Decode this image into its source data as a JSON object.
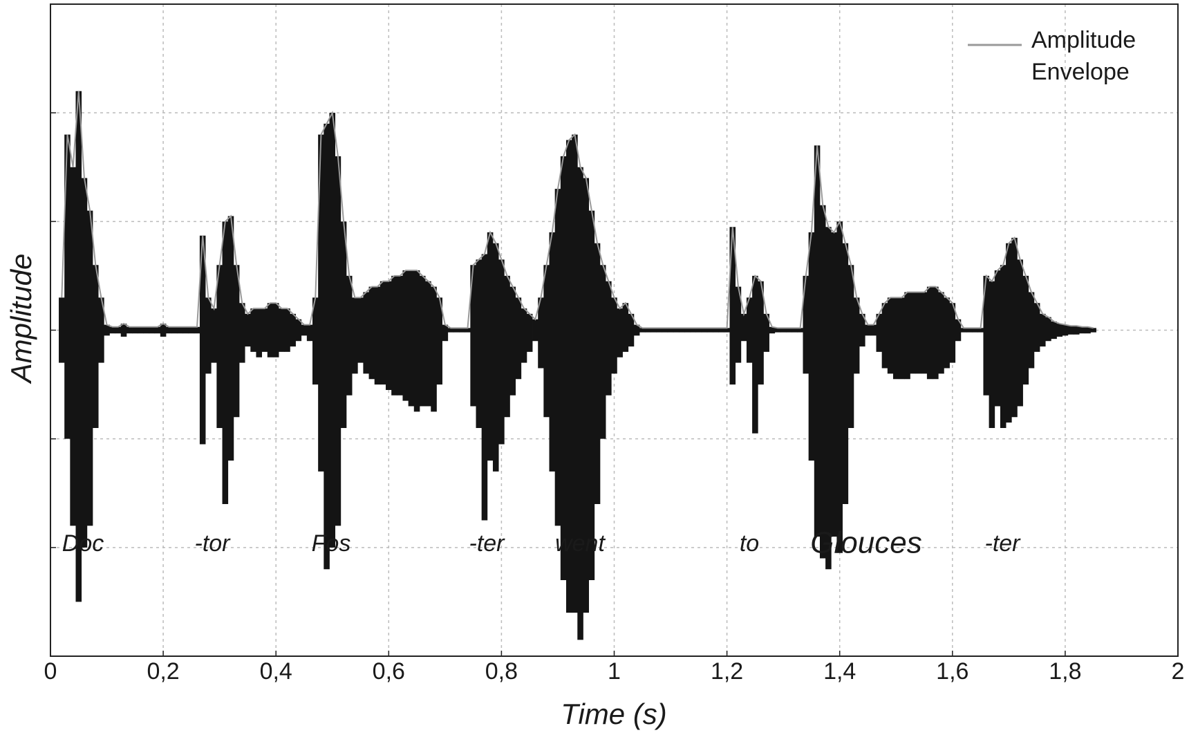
{
  "chart_data": {
    "type": "waveform",
    "xlabel": "Time (s)",
    "ylabel": "Amplitude",
    "xlim": [
      0,
      2
    ],
    "xticks": [
      0,
      {
        "value": 0.2,
        "label": "0,2"
      },
      {
        "value": 0.4,
        "label": "0,4"
      },
      {
        "value": 0.6,
        "label": "0,6"
      },
      {
        "value": 0.8,
        "label": "0,8"
      },
      1,
      {
        "value": 1.2,
        "label": "1,2"
      },
      {
        "value": 1.4,
        "label": "1,4"
      },
      {
        "value": 1.6,
        "label": "1,6"
      },
      {
        "value": 1.8,
        "label": "1,8"
      },
      2
    ],
    "ylim": [
      -3,
      3
    ],
    "yticks": [
      -3,
      -2,
      -1,
      0,
      1,
      2,
      3
    ],
    "grid": true,
    "legend": "upper right",
    "annotations": [
      "Doc",
      "-tor",
      "Fos",
      "-ter",
      "went",
      "to",
      "Glouces",
      "-ter"
    ],
    "x": [
      0.02,
      0.03,
      0.04,
      0.05,
      0.06,
      0.07,
      0.08,
      0.09,
      0.1,
      0.11,
      0.12,
      0.13,
      0.14,
      0.15,
      0.16,
      0.17,
      0.18,
      0.19,
      0.2,
      0.21,
      0.22,
      0.23,
      0.24,
      0.25,
      0.26,
      0.27,
      0.28,
      0.29,
      0.3,
      0.31,
      0.32,
      0.33,
      0.34,
      0.35,
      0.36,
      0.37,
      0.38,
      0.39,
      0.4,
      0.41,
      0.42,
      0.43,
      0.44,
      0.45,
      0.46,
      0.47,
      0.48,
      0.49,
      0.5,
      0.51,
      0.52,
      0.53,
      0.54,
      0.55,
      0.56,
      0.57,
      0.58,
      0.59,
      0.6,
      0.61,
      0.62,
      0.63,
      0.64,
      0.65,
      0.66,
      0.67,
      0.68,
      0.69,
      0.7,
      0.71,
      0.72,
      0.73,
      0.74,
      0.75,
      0.76,
      0.77,
      0.78,
      0.79,
      0.8,
      0.81,
      0.82,
      0.83,
      0.84,
      0.85,
      0.86,
      0.87,
      0.88,
      0.89,
      0.9,
      0.91,
      0.92,
      0.93,
      0.94,
      0.95,
      0.96,
      0.97,
      0.98,
      0.99,
      1.0,
      1.01,
      1.02,
      1.03,
      1.04,
      1.05,
      1.06,
      1.07,
      1.08,
      1.09,
      1.1,
      1.11,
      1.12,
      1.13,
      1.14,
      1.15,
      1.16,
      1.17,
      1.18,
      1.19,
      1.2,
      1.21,
      1.22,
      1.23,
      1.24,
      1.25,
      1.26,
      1.27,
      1.28,
      1.29,
      1.3,
      1.31,
      1.32,
      1.33,
      1.34,
      1.35,
      1.36,
      1.37,
      1.38,
      1.39,
      1.4,
      1.41,
      1.42,
      1.43,
      1.44,
      1.45,
      1.46,
      1.47,
      1.48,
      1.49,
      1.5,
      1.51,
      1.52,
      1.53,
      1.54,
      1.55,
      1.56,
      1.57,
      1.58,
      1.59,
      1.6,
      1.61,
      1.62,
      1.63,
      1.64,
      1.65,
      1.66,
      1.67,
      1.68,
      1.69,
      1.7,
      1.71,
      1.72,
      1.73,
      1.74,
      1.75,
      1.76,
      1.77,
      1.78,
      1.79,
      1.8,
      1.81,
      1.82,
      1.83,
      1.84,
      1.85
    ],
    "series": [
      {
        "name": "Amplitude Envelope",
        "color": "#999999",
        "fill_color": "#141414",
        "values": [
          0.3,
          1.8,
          1.5,
          2.2,
          1.4,
          1.1,
          0.6,
          0.3,
          0.05,
          0.03,
          0.03,
          0.06,
          0.03,
          0.03,
          0.03,
          0.03,
          0.03,
          0.03,
          0.06,
          0.03,
          0.03,
          0.03,
          0.03,
          0.03,
          0.03,
          0.87,
          0.3,
          0.2,
          0.6,
          1.0,
          1.05,
          0.6,
          0.25,
          0.15,
          0.2,
          0.2,
          0.2,
          0.25,
          0.25,
          0.2,
          0.2,
          0.15,
          0.1,
          0.05,
          0.05,
          0.3,
          1.8,
          1.9,
          2.0,
          1.6,
          1.0,
          0.5,
          0.3,
          0.3,
          0.35,
          0.4,
          0.4,
          0.45,
          0.45,
          0.5,
          0.5,
          0.55,
          0.55,
          0.55,
          0.5,
          0.45,
          0.4,
          0.3,
          0.05,
          0.02,
          0.02,
          0.02,
          0.02,
          0.6,
          0.65,
          0.7,
          0.9,
          0.8,
          0.65,
          0.5,
          0.4,
          0.3,
          0.2,
          0.15,
          0.1,
          0.3,
          0.6,
          0.9,
          1.3,
          1.6,
          1.75,
          1.8,
          1.5,
          1.4,
          1.1,
          0.8,
          0.6,
          0.45,
          0.3,
          0.2,
          0.25,
          0.15,
          0.05,
          0.02,
          0.02,
          0.02,
          0.02,
          0.02,
          0.02,
          0.02,
          0.02,
          0.02,
          0.02,
          0.02,
          0.02,
          0.02,
          0.02,
          0.02,
          0.02,
          0.95,
          0.4,
          0.15,
          0.3,
          0.5,
          0.45,
          0.15,
          0.03,
          0.02,
          0.02,
          0.02,
          0.02,
          0.02,
          0.5,
          0.9,
          1.7,
          1.15,
          0.95,
          0.9,
          1.0,
          0.8,
          0.6,
          0.3,
          0.15,
          0.05,
          0.05,
          0.15,
          0.25,
          0.3,
          0.3,
          0.3,
          0.35,
          0.35,
          0.35,
          0.35,
          0.4,
          0.4,
          0.35,
          0.3,
          0.25,
          0.1,
          0.02,
          0.02,
          0.02,
          0.02,
          0.5,
          0.45,
          0.55,
          0.6,
          0.8,
          0.85,
          0.65,
          0.5,
          0.35,
          0.25,
          0.15,
          0.12,
          0.08,
          0.06,
          0.05,
          0.04,
          0.04,
          0.03,
          0.03,
          0.02
        ],
        "lows": [
          -0.3,
          -1.0,
          -1.8,
          -2.5,
          -2.0,
          -1.8,
          -0.9,
          -0.3,
          -0.05,
          -0.03,
          -0.03,
          -0.06,
          -0.03,
          -0.03,
          -0.03,
          -0.03,
          -0.03,
          -0.03,
          -0.06,
          -0.03,
          -0.03,
          -0.03,
          -0.03,
          -0.03,
          -0.03,
          -1.05,
          -0.4,
          -0.3,
          -0.9,
          -1.6,
          -1.2,
          -0.8,
          -0.3,
          -0.15,
          -0.2,
          -0.25,
          -0.2,
          -0.25,
          -0.25,
          -0.2,
          -0.2,
          -0.15,
          -0.1,
          -0.05,
          -0.1,
          -0.5,
          -1.3,
          -2.2,
          -2.0,
          -1.8,
          -0.9,
          -0.6,
          -0.4,
          -0.3,
          -0.4,
          -0.45,
          -0.5,
          -0.5,
          -0.55,
          -0.6,
          -0.6,
          -0.65,
          -0.7,
          -0.75,
          -0.7,
          -0.7,
          -0.75,
          -0.5,
          -0.1,
          -0.02,
          -0.02,
          -0.02,
          -0.02,
          -0.7,
          -0.9,
          -1.75,
          -1.2,
          -1.3,
          -1.05,
          -0.8,
          -0.6,
          -0.45,
          -0.3,
          -0.2,
          -0.1,
          -0.35,
          -0.8,
          -1.3,
          -1.8,
          -2.3,
          -2.6,
          -2.6,
          -2.85,
          -2.6,
          -2.3,
          -1.6,
          -1.0,
          -0.6,
          -0.4,
          -0.25,
          -0.2,
          -0.15,
          -0.05,
          -0.02,
          -0.02,
          -0.02,
          -0.02,
          -0.02,
          -0.02,
          -0.02,
          -0.02,
          -0.02,
          -0.02,
          -0.02,
          -0.02,
          -0.02,
          -0.02,
          -0.02,
          -0.02,
          -0.5,
          -0.3,
          -0.1,
          -0.3,
          -0.95,
          -0.5,
          -0.2,
          -0.03,
          -0.02,
          -0.02,
          -0.02,
          -0.02,
          -0.02,
          -0.4,
          -1.2,
          -1.9,
          -2.1,
          -2.2,
          -1.9,
          -2.05,
          -1.6,
          -0.9,
          -0.4,
          -0.15,
          -0.05,
          -0.05,
          -0.2,
          -0.35,
          -0.4,
          -0.45,
          -0.45,
          -0.45,
          -0.4,
          -0.4,
          -0.4,
          -0.45,
          -0.45,
          -0.4,
          -0.35,
          -0.3,
          -0.1,
          -0.02,
          -0.02,
          -0.02,
          -0.02,
          -0.6,
          -0.9,
          -0.7,
          -0.9,
          -0.85,
          -0.8,
          -0.7,
          -0.5,
          -0.35,
          -0.2,
          -0.15,
          -0.1,
          -0.08,
          -0.06,
          -0.05,
          -0.04,
          -0.04,
          -0.03,
          -0.03,
          -0.02
        ]
      }
    ]
  }
}
